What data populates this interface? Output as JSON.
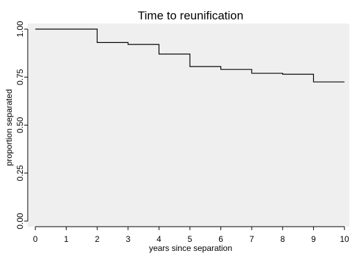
{
  "chart_data": {
    "type": "line",
    "step": true,
    "title": "Time to reunification",
    "xlabel": "years since separation",
    "ylabel": "proportion separated",
    "xlim": [
      0,
      10
    ],
    "ylim": [
      0,
      1
    ],
    "xticks": [
      "0",
      "1",
      "2",
      "3",
      "4",
      "5",
      "6",
      "7",
      "8",
      "9",
      "10"
    ],
    "yticks": [
      "0.00",
      "0.25",
      "0.50",
      "0.75",
      "1.00"
    ],
    "grid": false,
    "series": [
      {
        "x": [
          0,
          1,
          2,
          3,
          4,
          5,
          6,
          7,
          8,
          9,
          10
        ],
        "y": [
          1.0,
          1.0,
          0.93,
          0.92,
          0.87,
          0.805,
          0.79,
          0.77,
          0.765,
          0.725,
          0.725
        ]
      }
    ],
    "colors": {
      "plot_background": "#efefef",
      "line": "#000000"
    }
  }
}
